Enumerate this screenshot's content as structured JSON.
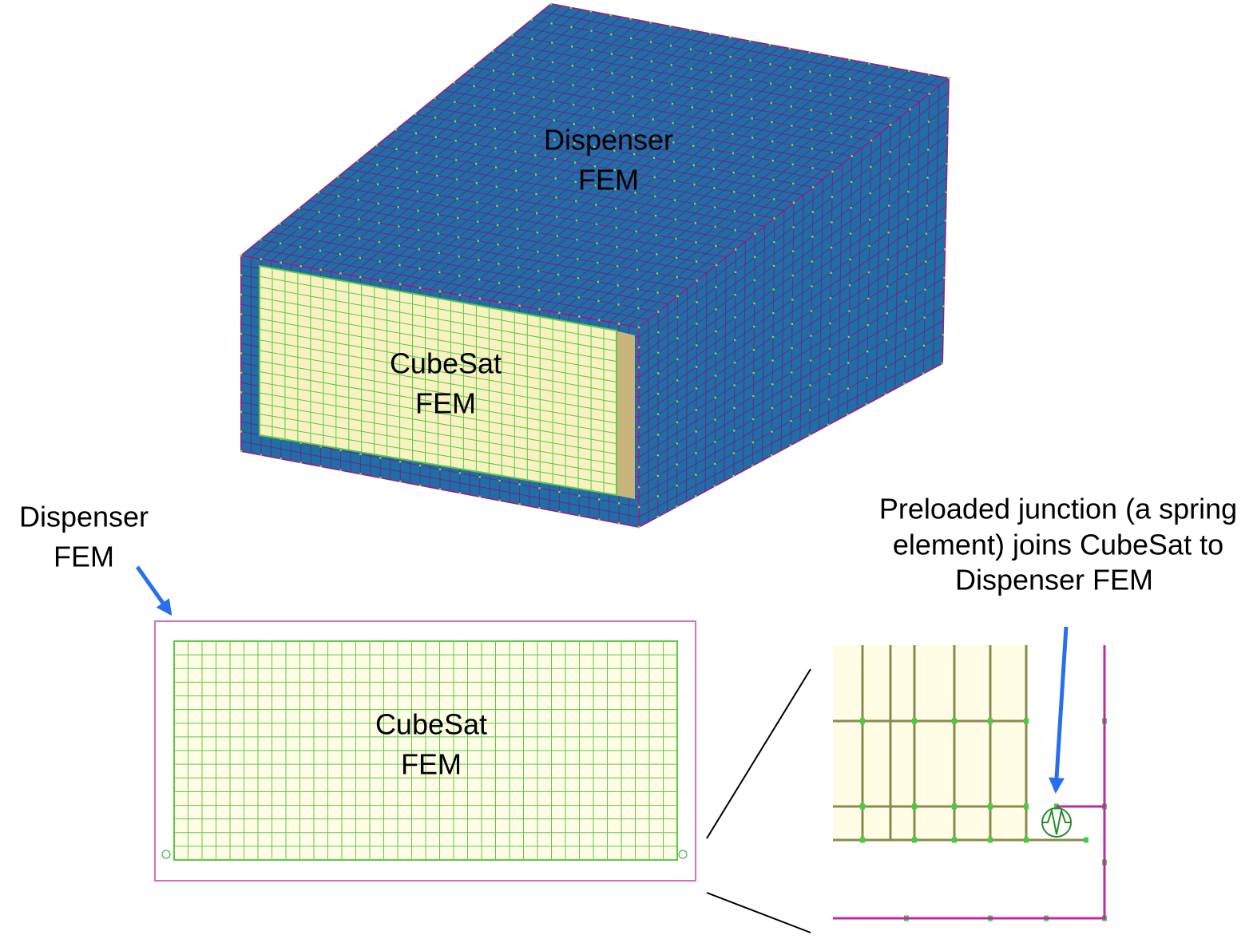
{
  "isometric_view": {
    "dispenser_label": [
      "Dispenser",
      "FEM"
    ],
    "cubesat_label": [
      "CubeSat",
      "FEM"
    ]
  },
  "front_view": {
    "dispenser_callout": [
      "Dispenser",
      "FEM"
    ],
    "cubesat_label": [
      "CubeSat",
      "FEM"
    ]
  },
  "detail_view": {
    "junction_callout": [
      "Preloaded junction (a spring",
      "element) joins CubeSat to",
      "Dispenser FEM"
    ]
  }
}
